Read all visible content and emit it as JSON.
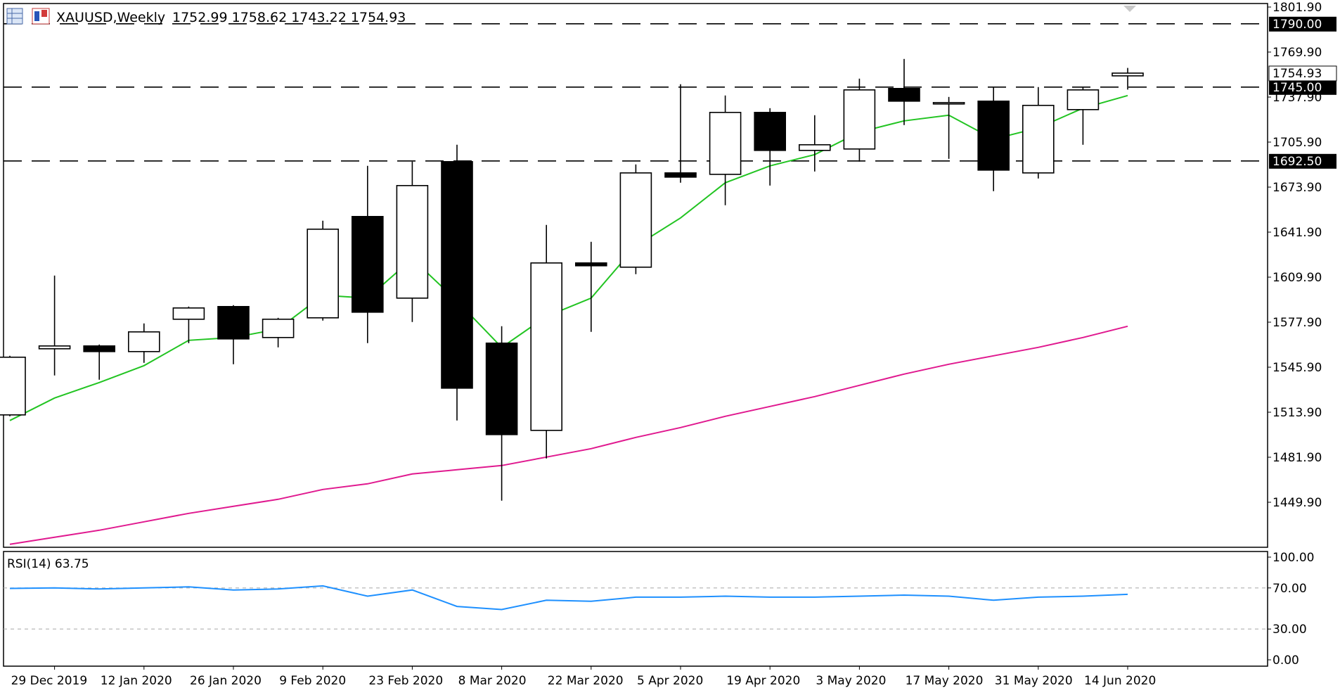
{
  "header": {
    "symbol": "XAUUSD,Weekly",
    "ohlc": "1752.99 1758.62 1743.22 1754.93"
  },
  "colors": {
    "background": "#ffffff",
    "frame": "#000000",
    "bull_body": "#ffffff",
    "bear_body": "#000000",
    "ma_fast": "#22c422",
    "ma_slow": "#e0198f",
    "rsi_line": "#1e90ff",
    "rsi_levels": "#b0b0b0"
  },
  "icons": [
    "grid-window-icon",
    "chart-window-icon"
  ],
  "chart_data": [
    {
      "type": "candlestick",
      "title": "XAUUSD,Weekly",
      "ylim": [
        1417.9,
        1801.9
      ],
      "y_ticks": [
        "1801.90",
        "1769.90",
        "1737.90",
        "1705.90",
        "1673.90",
        "1641.90",
        "1609.90",
        "1577.90",
        "1545.90",
        "1513.90",
        "1481.90",
        "1449.90"
      ],
      "x_labels": [
        "29 Dec 2019",
        "12 Jan 2020",
        "26 Jan 2020",
        "9 Feb 2020",
        "23 Feb 2020",
        "8 Mar 2020",
        "22 Mar 2020",
        "5 Apr 2020",
        "19 Apr 2020",
        "3 May 2020",
        "17 May 2020",
        "31 May 2020",
        "14 Jun 2020"
      ],
      "grid": false,
      "horizontal_levels": [
        {
          "value": 1790.0,
          "label": "1790.00"
        },
        {
          "value": 1745.0,
          "label": "1745.00"
        },
        {
          "value": 1692.5,
          "label": "1692.50"
        }
      ],
      "current_price": {
        "value": 1754.93,
        "label": "1754.93"
      },
      "candles": [
        {
          "week": "22 Dec 2019",
          "open": 1512.0,
          "high": 1554.0,
          "low": 1511.0,
          "close": 1553.0
        },
        {
          "week": "29 Dec 2019",
          "open": 1559.0,
          "high": 1611.0,
          "low": 1540.0,
          "close": 1561.0
        },
        {
          "week": "5 Jan 2020",
          "open": 1561.0,
          "high": 1562.0,
          "low": 1537.0,
          "close": 1557.0
        },
        {
          "week": "12 Jan 2020",
          "open": 1557.0,
          "high": 1577.0,
          "low": 1549.0,
          "close": 1571.0
        },
        {
          "week": "19 Jan 2020",
          "open": 1580.0,
          "high": 1589.0,
          "low": 1563.0,
          "close": 1588.0
        },
        {
          "week": "26 Jan 2020",
          "open": 1589.0,
          "high": 1590.0,
          "low": 1548.0,
          "close": 1566.0
        },
        {
          "week": "2 Feb 2020",
          "open": 1567.0,
          "high": 1581.0,
          "low": 1560.0,
          "close": 1580.0
        },
        {
          "week": "9 Feb 2020",
          "open": 1581.0,
          "high": 1650.0,
          "low": 1579.0,
          "close": 1644.0
        },
        {
          "week": "16 Feb 2020",
          "open": 1653.0,
          "high": 1689.0,
          "low": 1563.0,
          "close": 1585.0
        },
        {
          "week": "23 Feb 2020",
          "open": 1595.0,
          "high": 1692.0,
          "low": 1578.0,
          "close": 1675.0
        },
        {
          "week": "1 Mar 2020",
          "open": 1692.0,
          "high": 1704.0,
          "low": 1508.0,
          "close": 1531.0
        },
        {
          "week": "8 Mar 2020",
          "open": 1563.0,
          "high": 1575.0,
          "low": 1451.0,
          "close": 1498.0
        },
        {
          "week": "15 Mar 2020",
          "open": 1501.0,
          "high": 1647.0,
          "low": 1481.0,
          "close": 1620.0
        },
        {
          "week": "22 Mar 2020",
          "open": 1620.0,
          "high": 1635.0,
          "low": 1571.0,
          "close": 1618.0
        },
        {
          "week": "29 Mar 2020",
          "open": 1617.0,
          "high": 1690.0,
          "low": 1612.0,
          "close": 1684.0
        },
        {
          "week": "5 Apr 2020",
          "open": 1684.0,
          "high": 1747.0,
          "low": 1677.0,
          "close": 1681.0
        },
        {
          "week": "12 Apr 2020",
          "open": 1683.0,
          "high": 1739.0,
          "low": 1661.0,
          "close": 1727.0
        },
        {
          "week": "19 Apr 2020",
          "open": 1727.0,
          "high": 1730.0,
          "low": 1675.0,
          "close": 1700.0
        },
        {
          "week": "26 Apr 2020",
          "open": 1700.0,
          "high": 1725.0,
          "low": 1685.0,
          "close": 1704.0
        },
        {
          "week": "3 May 2020",
          "open": 1701.0,
          "high": 1751.0,
          "low": 1692.0,
          "close": 1743.0
        },
        {
          "week": "10 May 2020",
          "open": 1744.0,
          "high": 1765.0,
          "low": 1718.0,
          "close": 1735.0
        },
        {
          "week": "17 May 2020",
          "open": 1733.0,
          "high": 1738.0,
          "low": 1694.0,
          "close": 1734.0
        },
        {
          "week": "24 May 2020",
          "open": 1735.0,
          "high": 1745.0,
          "low": 1671.0,
          "close": 1686.0
        },
        {
          "week": "31 May 2020",
          "open": 1684.0,
          "high": 1745.0,
          "low": 1680.0,
          "close": 1732.0
        },
        {
          "week": "7 Jun 2020",
          "open": 1729.0,
          "high": 1745.0,
          "low": 1704.0,
          "close": 1743.0
        },
        {
          "week": "14 Jun 2020",
          "open": 1752.99,
          "high": 1758.62,
          "low": 1743.22,
          "close": 1754.93
        }
      ],
      "series": [
        {
          "values": [
            1508,
            1524,
            1535,
            1547,
            1565,
            1567,
            1573,
            1597,
            1595,
            1623,
            1593,
            1560,
            1582,
            1595,
            1632,
            1652,
            1677,
            1689,
            1697,
            1713,
            1721,
            1725,
            1708,
            1716,
            1730,
            1739
          ]
        },
        {
          "values": [
            1420,
            1425,
            1430,
            1436,
            1442,
            1447,
            1452,
            1459,
            1463,
            1470,
            1473,
            1476,
            1482,
            1488,
            1496,
            1503,
            1511,
            1518,
            1525,
            1533,
            1541,
            1548,
            1554,
            1560,
            1567,
            1575
          ]
        }
      ]
    },
    {
      "type": "line",
      "title": "RSI(14) 63.75",
      "ylim": [
        0,
        100
      ],
      "y_ticks": [
        "100.00",
        "70.00",
        "30.00",
        "0.00"
      ],
      "levels": [
        70,
        30
      ],
      "series": [
        {
          "values": [
            69.5,
            70,
            69,
            70,
            71,
            68,
            69,
            72,
            62,
            68,
            52,
            49,
            58,
            57,
            61,
            61,
            62,
            61,
            61,
            62,
            63,
            62,
            58,
            61,
            62,
            63.75
          ]
        }
      ]
    }
  ]
}
